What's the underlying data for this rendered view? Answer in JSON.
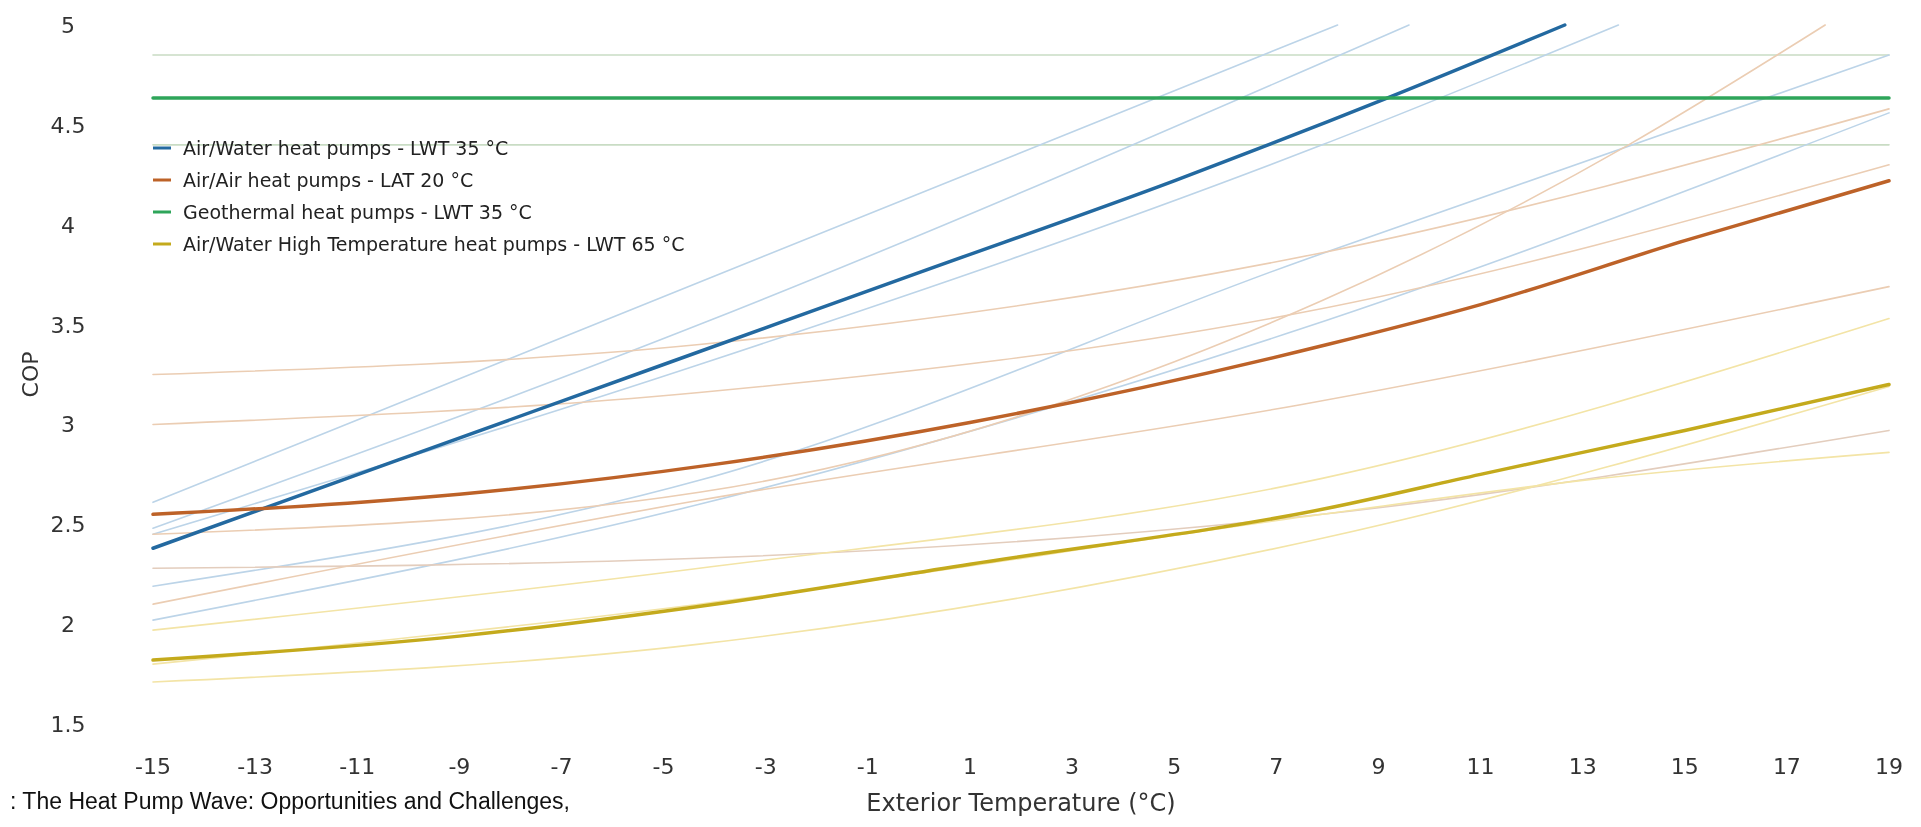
{
  "chart_data": {
    "type": "line",
    "xlabel": "Exterior Temperature (°C)",
    "ylabel": "COP",
    "annotations": [
      ": The Heat Pump Wave: Opportunities and Challenges,"
    ],
    "xlim": [
      -15,
      19
    ],
    "xticks": [
      -15,
      -13,
      -11,
      -9,
      -7,
      -5,
      -3,
      -1,
      1,
      3,
      5,
      7,
      9,
      11,
      13,
      15,
      17,
      19
    ],
    "ylim": [
      1.5,
      5
    ],
    "yticks": [
      1.5,
      2,
      2.5,
      3,
      3.5,
      4,
      4.5,
      5
    ],
    "grid": false,
    "legend": "top left",
    "marker": "none",
    "line_style": "solid",
    "series": [
      {
        "color": "#c9dcc4",
        "x": [
          -15,
          19
        ],
        "values": [
          4.85,
          4.85
        ]
      },
      {
        "color": "#c9dcc4",
        "x": [
          -15,
          19
        ],
        "values": [
          4.4,
          4.4
        ]
      },
      {
        "color": "#bcd4e8",
        "x": [
          -15,
          8.2
        ],
        "values": [
          2.61,
          5.0
        ]
      },
      {
        "color": "#bcd4e8",
        "x": [
          -15,
          -4.3,
          9.6
        ],
        "values": [
          2.48,
          3.5,
          5.0
        ]
      },
      {
        "color": "#bcd4e8",
        "x": [
          -15,
          -4.3,
          7.9,
          13.7
        ],
        "values": [
          2.45,
          3.3,
          4.4,
          5.0
        ]
      },
      {
        "color": "#bcd4e8",
        "x": [
          -15,
          -4.3,
          7.5,
          19
        ],
        "values": [
          2.19,
          2.72,
          3.82,
          4.85
        ]
      },
      {
        "color": "#bcd4e8",
        "x": [
          -15,
          -4.3,
          7.5,
          19
        ],
        "values": [
          2.02,
          2.6,
          3.48,
          4.56
        ]
      },
      {
        "color": "#ebcdb3",
        "x": [
          -15,
          -4.3,
          7.9,
          19
        ],
        "values": [
          3.25,
          3.4,
          3.86,
          4.58
        ]
      },
      {
        "color": "#ebcdb3",
        "x": [
          -15,
          -4.3,
          7.5,
          19
        ],
        "values": [
          3.0,
          3.16,
          3.56,
          4.3
        ]
      },
      {
        "color": "#ebcdb3",
        "x": [
          -15,
          -4.3,
          7.9,
          13.9,
          17.75
        ],
        "values": [
          2.45,
          2.66,
          3.62,
          4.4,
          5.0
        ]
      },
      {
        "color": "#e3cdbd",
        "x": [
          -15,
          -4.3,
          7.9,
          19
        ],
        "values": [
          2.28,
          2.33,
          2.55,
          2.97
        ]
      },
      {
        "color": "#ebcdb3",
        "x": [
          -15,
          -4.3,
          7.5,
          19
        ],
        "values": [
          2.1,
          2.62,
          3.1,
          3.69
        ]
      },
      {
        "color": "#f3e4a6",
        "x": [
          -15,
          -4.3,
          7.9,
          19
        ],
        "values": [
          1.97,
          2.28,
          2.73,
          3.53
        ]
      },
      {
        "color": "#f3e4a6",
        "x": [
          -15,
          -4.3,
          7.9,
          19
        ],
        "values": [
          1.71,
          1.9,
          2.43,
          3.19
        ]
      },
      {
        "color": "#f3e4a6",
        "x": [
          -15,
          -4.3,
          7.9,
          13,
          19
        ],
        "values": [
          1.8,
          2.1,
          2.55,
          2.72,
          2.86
        ]
      },
      {
        "name": "Air/Water heat pumps - LWT 35 °C",
        "color": "#2369a0",
        "x": [
          -15,
          -10,
          -5,
          0,
          5,
          9.18,
          12.65
        ],
        "values": [
          2.38,
          2.84,
          3.3,
          3.76,
          4.22,
          4.635,
          5.0
        ]
      },
      {
        "name": "Air/Air heat pumps - LAT 20 °C",
        "color": "#bd6228",
        "x": [
          -15,
          -9,
          -4,
          1,
          8,
          11,
          15,
          19
        ],
        "values": [
          2.55,
          2.65,
          2.8,
          3.01,
          3.4,
          3.6,
          3.92,
          4.22
        ]
      },
      {
        "name": "Geothermal heat pumps - LWT 35 °C",
        "color": "#2ea55a",
        "x": [
          -15,
          19
        ],
        "values": [
          4.635,
          4.635
        ]
      },
      {
        "name": "Air/Water High Temperature heat pumps - LWT 65 °C",
        "color": "#c4aa1c",
        "x": [
          -15,
          -9,
          -4,
          1,
          8,
          11,
          15,
          19
        ],
        "values": [
          1.82,
          1.94,
          2.1,
          2.3,
          2.58,
          2.75,
          2.97,
          3.2
        ]
      }
    ]
  }
}
